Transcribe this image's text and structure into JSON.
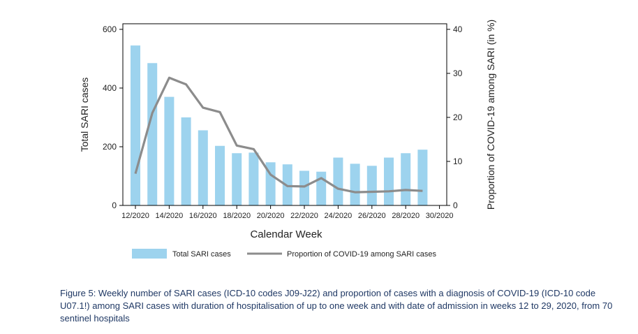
{
  "chart_data": {
    "type": "bar",
    "categories": [
      "12/2020",
      "13/2020",
      "14/2020",
      "15/2020",
      "16/2020",
      "17/2020",
      "18/2020",
      "19/2020",
      "20/2020",
      "21/2020",
      "22/2020",
      "23/2020",
      "24/2020",
      "25/2020",
      "26/2020",
      "27/2020",
      "28/2020",
      "29/2020"
    ],
    "x_tick_labels": [
      "12/2020",
      "14/2020",
      "16/2020",
      "18/2020",
      "20/2020",
      "22/2020",
      "24/2020",
      "26/2020",
      "28/2020",
      "30/2020"
    ],
    "xlabel": "Calendar Week",
    "ylabel": "Total SARI cases",
    "y2label": "Proportion of COVID-19 among SARI (in %)",
    "ylim": [
      0,
      600
    ],
    "y_ticks": [
      0,
      200,
      400,
      600
    ],
    "y2lim": [
      0,
      40
    ],
    "y2_ticks": [
      0,
      10,
      20,
      30,
      40
    ],
    "grid": false,
    "legend_position": "bottom",
    "series": [
      {
        "name": "Total SARI cases",
        "type": "bar",
        "axis": "left",
        "color": "#9dd3ee",
        "values": [
          545,
          485,
          370,
          300,
          256,
          203,
          178,
          180,
          147,
          140,
          118,
          115,
          163,
          142,
          135,
          163,
          178,
          190
        ]
      },
      {
        "name": "Proportion of COVID-19 among SARI cases",
        "type": "line",
        "axis": "right",
        "color": "#8c8c8c",
        "values": [
          7.2,
          21,
          29,
          27.5,
          22.2,
          21.2,
          13.6,
          12.8,
          7,
          4.4,
          4.3,
          6.2,
          3.8,
          3,
          3.1,
          3.2,
          3.5,
          3.3
        ]
      }
    ]
  },
  "caption": "Figure 5: Weekly number of SARI cases (ICD-10 codes J09-J22) and proportion of cases with a diagnosis of COVID-19 (ICD-10 code U07.1!) among SARI cases with duration of hospitalisation of up to one week and with date of admission in weeks 12 to 29, 2020, from 70 sentinel hospitals"
}
